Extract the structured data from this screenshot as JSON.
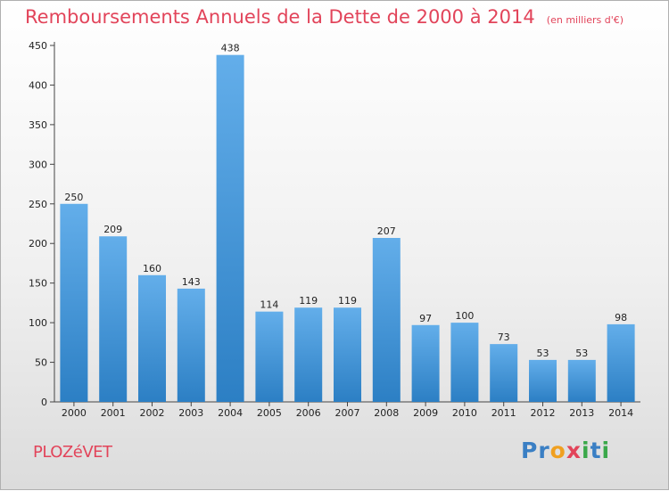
{
  "title": {
    "main": "Remboursements Annuels de la Dette de 2000 à 2014",
    "units": "(en milliers d'€)"
  },
  "commune": "PLOZéVET",
  "brand": {
    "letters": [
      {
        "char": "P",
        "color": "#3a7fc4"
      },
      {
        "char": "r",
        "color": "#3a7fc4"
      },
      {
        "char": "o",
        "color": "#f0a020"
      },
      {
        "char": "x",
        "color": "#e2445a"
      },
      {
        "char": "i",
        "color": "#3aa84a"
      },
      {
        "char": "t",
        "color": "#3a7fc4"
      },
      {
        "char": "i",
        "color": "#3aa84a"
      }
    ]
  },
  "colors": {
    "bar_light": "#63aeea",
    "bar_dark": "#2c7fc4",
    "title": "#e2445a"
  },
  "chart_data": {
    "type": "bar",
    "title": "Remboursements Annuels de la Dette de 2000 à 2014",
    "subtitle": "(en milliers d'€)",
    "xlabel": "",
    "ylabel": "",
    "categories": [
      "2000",
      "2001",
      "2002",
      "2003",
      "2004",
      "2005",
      "2006",
      "2007",
      "2008",
      "2009",
      "2010",
      "2011",
      "2012",
      "2013",
      "2014"
    ],
    "values": [
      250,
      209,
      160,
      143,
      438,
      114,
      119,
      119,
      207,
      97,
      100,
      73,
      53,
      53,
      98
    ],
    "ylim": [
      0,
      450
    ],
    "yticks": [
      0,
      50,
      100,
      150,
      200,
      250,
      300,
      350,
      400,
      450
    ],
    "grid": false,
    "legend": "none"
  }
}
